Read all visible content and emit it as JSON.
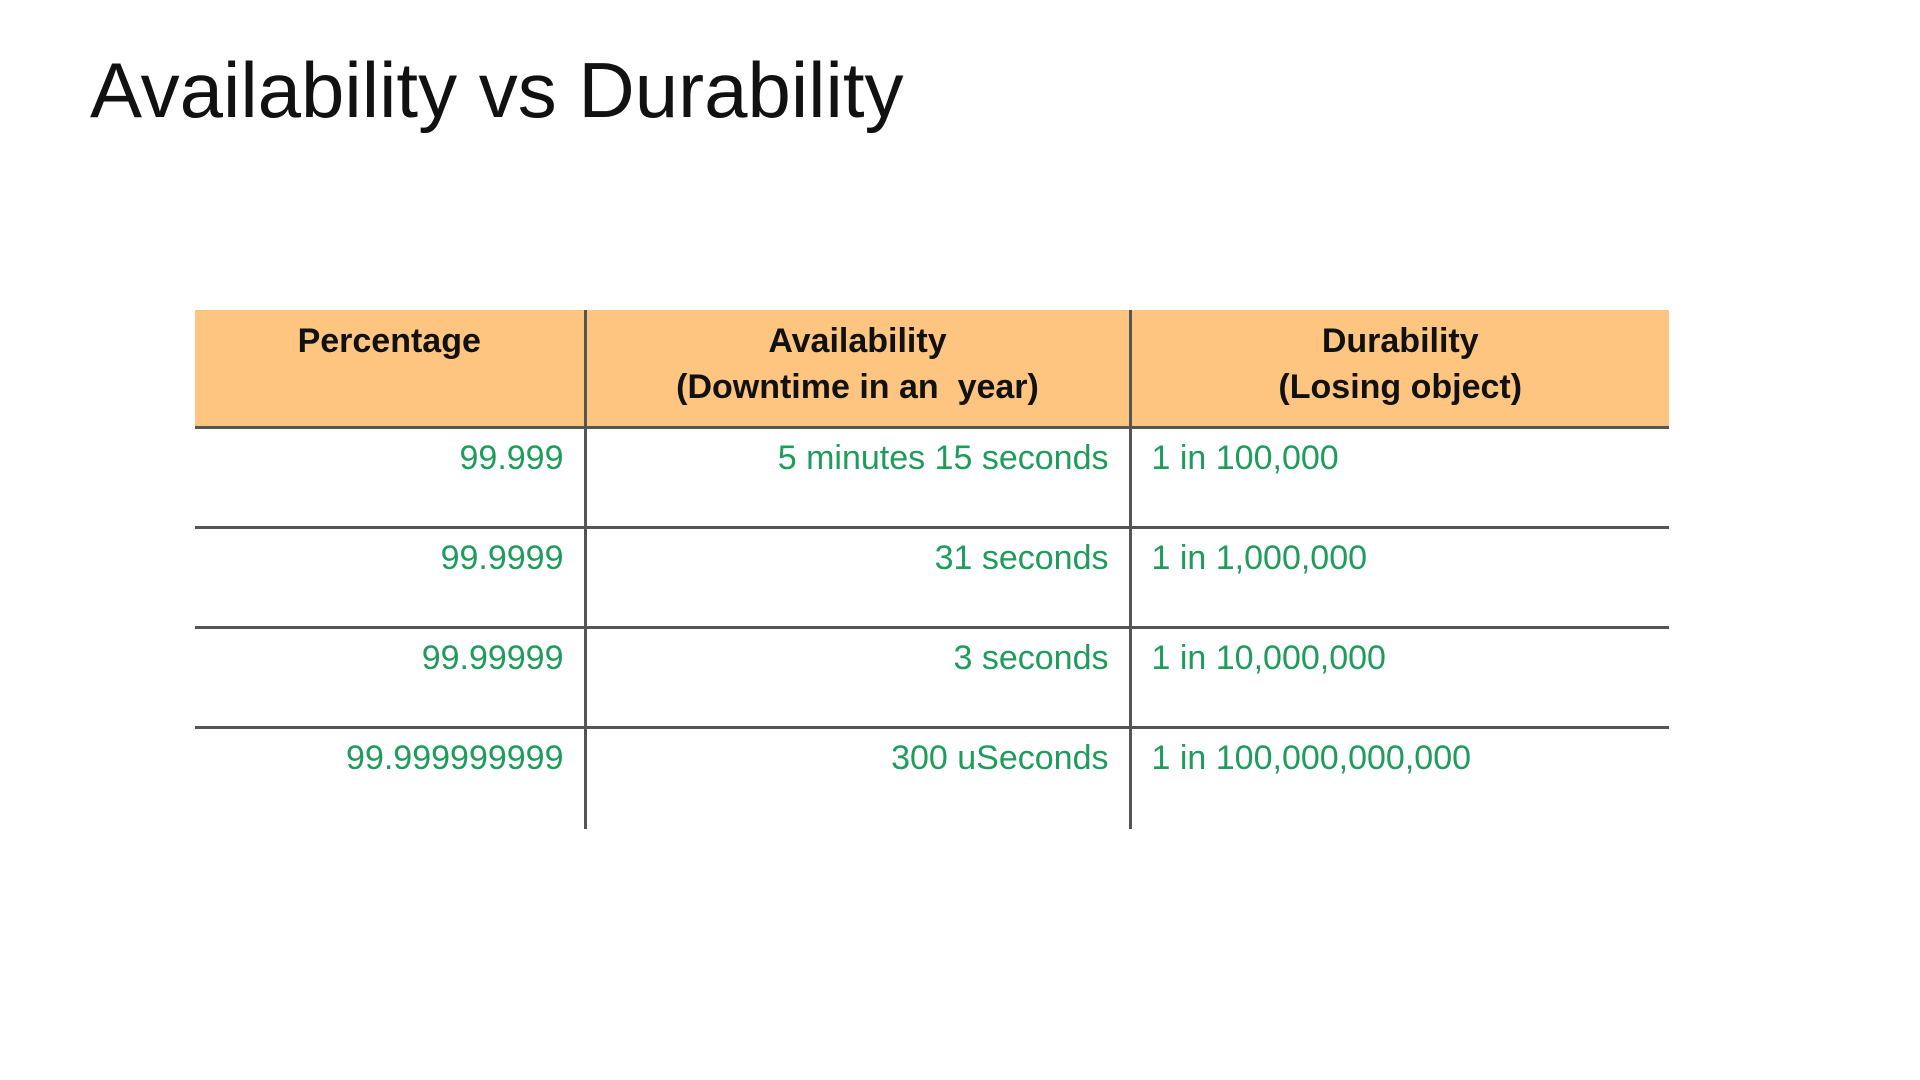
{
  "slide": {
    "title": "Availability vs Durability"
  },
  "table": {
    "headers": [
      {
        "line1": "Percentage",
        "line2": ""
      },
      {
        "line1": "Availability",
        "line2": "(Downtime in an  year)"
      },
      {
        "line1": "Durability",
        "line2": "(Losing object)"
      }
    ],
    "rows": [
      {
        "percentage": "99.999",
        "availability": "5 minutes 15 seconds",
        "durability": "1 in 100,000"
      },
      {
        "percentage": "99.9999",
        "availability": "31 seconds",
        "durability": "1 in 1,000,000"
      },
      {
        "percentage": "99.99999",
        "availability": "3 seconds",
        "durability": "1 in 10,000,000"
      },
      {
        "percentage": "99.999999999",
        "availability": "300 uSeconds",
        "durability": "1 in 100,000,000,000"
      }
    ]
  },
  "colors": {
    "header_background": "#fdc57f",
    "value_text": "#1f9c5c",
    "rule": "#555555"
  }
}
